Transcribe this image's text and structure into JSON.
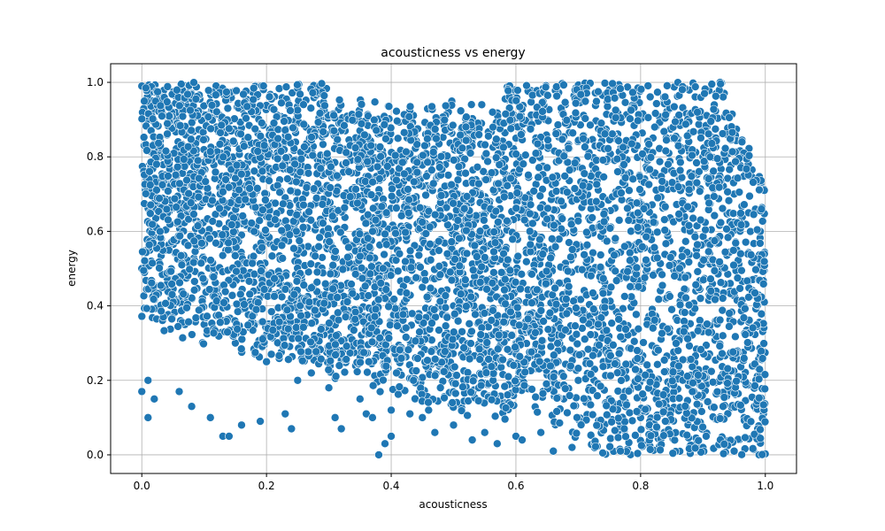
{
  "chart_data": {
    "type": "scatter",
    "title": "acousticness vs energy",
    "xlabel": "acousticness",
    "ylabel": "energy",
    "xlim": [
      -0.05,
      1.05
    ],
    "ylim": [
      -0.05,
      1.05
    ],
    "xticks": [
      0.0,
      0.2,
      0.4,
      0.6,
      0.8,
      1.0
    ],
    "yticks": [
      0.0,
      0.2,
      0.4,
      0.6,
      0.8,
      1.0
    ],
    "xtick_labels": [
      "0.0",
      "0.2",
      "0.4",
      "0.6",
      "0.8",
      "1.0"
    ],
    "ytick_labels": [
      "0.0",
      "0.2",
      "0.4",
      "0.6",
      "0.8",
      "1.0"
    ],
    "grid": true,
    "marker_color": "#1f77b4",
    "marker_edge_color": "#ffffff",
    "series": [
      {
        "name": "acousticness vs energy",
        "points": [
          [
            0.0,
            0.99
          ],
          [
            0.005,
            0.95
          ],
          [
            0.01,
            0.9
          ],
          [
            0.02,
            0.85
          ],
          [
            0.03,
            0.8
          ],
          [
            0.05,
            0.92
          ],
          [
            0.08,
            0.97
          ],
          [
            0.12,
            0.88
          ],
          [
            0.15,
            0.75
          ],
          [
            0.2,
            0.7
          ],
          [
            0.25,
            0.65
          ],
          [
            0.3,
            0.6
          ],
          [
            0.35,
            0.55
          ],
          [
            0.4,
            0.5
          ],
          [
            0.45,
            0.45
          ],
          [
            0.5,
            0.4
          ],
          [
            0.55,
            0.35
          ],
          [
            0.6,
            0.3
          ],
          [
            0.65,
            0.25
          ],
          [
            0.7,
            0.2
          ],
          [
            0.75,
            0.15
          ],
          [
            0.8,
            0.1
          ],
          [
            0.85,
            0.05
          ],
          [
            0.9,
            0.02
          ],
          [
            0.95,
            0.01
          ],
          [
            0.99,
            0.0
          ],
          [
            0.0,
            0.5
          ],
          [
            0.02,
            0.45
          ],
          [
            0.05,
            0.4
          ],
          [
            0.1,
            0.35
          ],
          [
            0.15,
            0.3
          ],
          [
            0.2,
            0.25
          ],
          [
            0.25,
            0.2
          ],
          [
            0.3,
            0.18
          ],
          [
            0.35,
            0.15
          ],
          [
            0.4,
            0.12
          ],
          [
            0.45,
            0.1
          ],
          [
            0.5,
            0.08
          ],
          [
            0.55,
            0.06
          ],
          [
            0.6,
            0.05
          ],
          [
            0.8,
            0.9
          ],
          [
            0.85,
            0.85
          ],
          [
            0.9,
            0.8
          ],
          [
            0.95,
            0.7
          ],
          [
            0.99,
            0.6
          ],
          [
            0.7,
            0.95
          ],
          [
            0.75,
            0.98
          ],
          [
            0.65,
            0.9
          ],
          [
            0.6,
            0.85
          ],
          [
            0.55,
            0.8
          ],
          [
            0.38,
            0.0
          ],
          [
            0.0,
            0.17
          ],
          [
            0.01,
            0.2
          ],
          [
            0.01,
            0.1
          ],
          [
            0.02,
            0.15
          ],
          [
            0.06,
            0.17
          ],
          [
            0.08,
            0.13
          ],
          [
            0.11,
            0.1
          ],
          [
            0.13,
            0.05
          ],
          [
            0.14,
            0.05
          ],
          [
            0.16,
            0.08
          ],
          [
            0.19,
            0.09
          ],
          [
            0.23,
            0.11
          ],
          [
            0.24,
            0.07
          ],
          [
            0.31,
            0.1
          ],
          [
            0.32,
            0.07
          ],
          [
            0.36,
            0.11
          ],
          [
            0.37,
            0.1
          ],
          [
            0.39,
            0.03
          ],
          [
            0.4,
            0.05
          ],
          [
            0.43,
            0.11
          ],
          [
            0.46,
            0.12
          ],
          [
            0.47,
            0.06
          ],
          [
            0.5,
            0.08
          ],
          [
            0.53,
            0.04
          ],
          [
            0.57,
            0.03
          ],
          [
            0.61,
            0.04
          ],
          [
            0.64,
            0.06
          ],
          [
            0.66,
            0.01
          ],
          [
            0.69,
            0.02
          ]
        ]
      }
    ]
  }
}
